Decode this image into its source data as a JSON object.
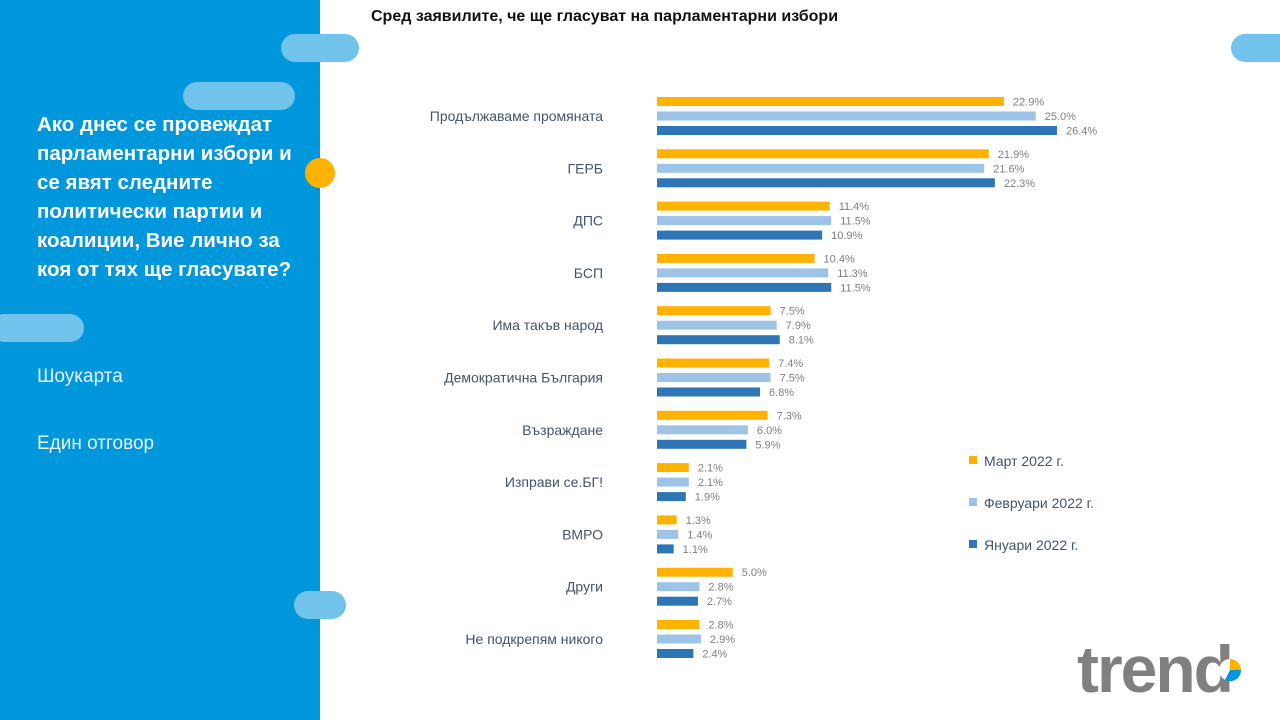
{
  "left_panel": {
    "question": "Ако днес се провеждат парламентарни избори и се явят следните политически партии и коалиции, Вие лично за коя от тях ще гласувате?",
    "note_1": "Шоукарта",
    "note_2": "Един отговор"
  },
  "logo": {
    "text": "trend"
  },
  "chart_data": {
    "type": "bar",
    "orientation": "horizontal",
    "title": "Сред заявилите, че ще гласуват на парламентарни избори",
    "categories": [
      "Продължаваме промяната",
      "ГЕРБ",
      "ДПС",
      "БСП",
      "Има такъв народ",
      "Демократична България",
      "Възраждане",
      "Изправи се.БГ!",
      "ВМРО",
      "Други",
      "Не подкрепям никого"
    ],
    "series": [
      {
        "name": "Март 2022 г.",
        "color": "#ffb300",
        "values": [
          22.9,
          21.9,
          11.4,
          10.4,
          7.5,
          7.4,
          7.3,
          2.1,
          1.3,
          5.0,
          2.8
        ],
        "labels": [
          "22.9%",
          "21.9%",
          "11.4%",
          "10.4%",
          "7.5%",
          "7.4%",
          "7.3%",
          "2.1%",
          "1.3%",
          "5.0%",
          "2.8%"
        ]
      },
      {
        "name": "Февруари 2022 г.",
        "color": "#9dc3e6",
        "values": [
          25.0,
          21.6,
          11.5,
          11.3,
          7.9,
          7.5,
          6.0,
          2.1,
          1.4,
          2.8,
          2.9
        ],
        "labels": [
          "25.0%",
          "21.6%",
          "11.5%",
          "11.3%",
          "7.9%",
          "7.5%",
          "6.0%",
          "2.1%",
          "1.4%",
          "2.8%",
          "2.9%"
        ]
      },
      {
        "name": "Януари 2022 г.",
        "color": "#2e75b6",
        "values": [
          26.4,
          22.3,
          10.9,
          11.5,
          8.1,
          6.8,
          5.9,
          1.9,
          1.1,
          2.7,
          2.4
        ],
        "labels": [
          "26.4%",
          "22.3%",
          "10.9%",
          "11.5%",
          "8.1%",
          "6.8%",
          "5.9%",
          "1.9%",
          "1.1%",
          "2.7%",
          "2.4%"
        ]
      }
    ],
    "unit": "%",
    "legend_position": "right",
    "grid": false
  }
}
